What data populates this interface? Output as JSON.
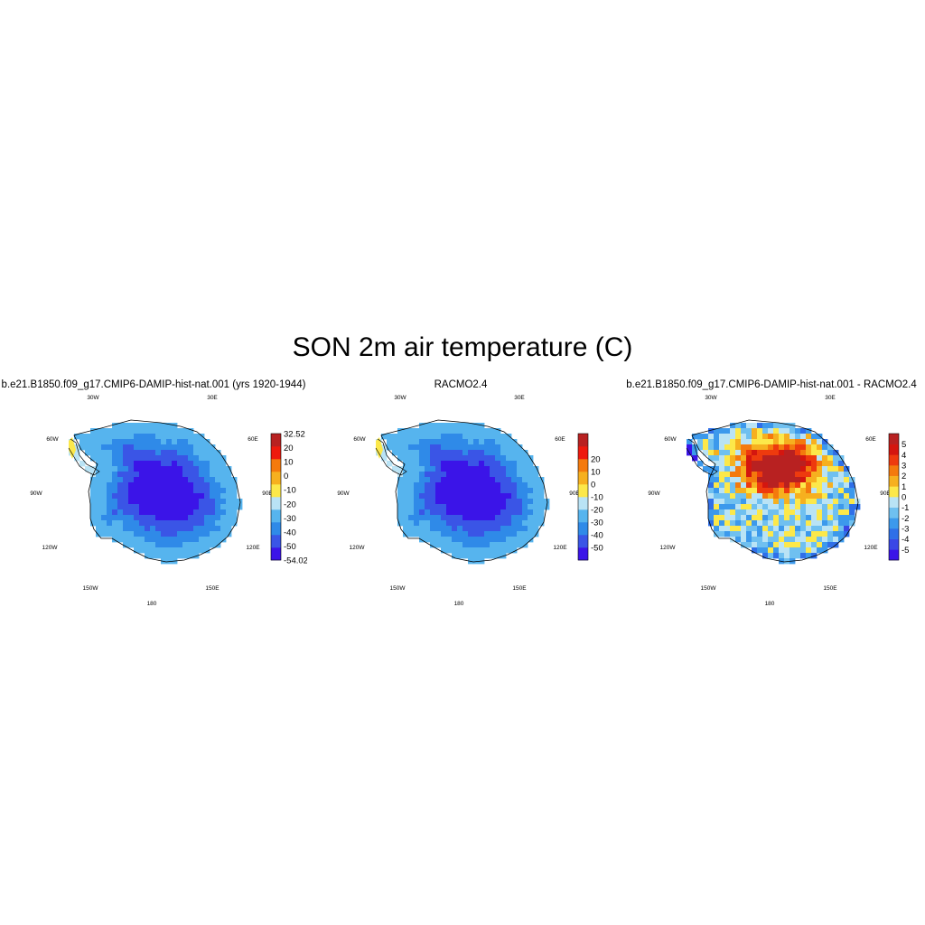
{
  "title": "SON 2m air temperature (C)",
  "lon_labels": [
    "30W",
    "30E",
    "60W",
    "60E",
    "90W",
    "90E",
    "120W",
    "120E",
    "150W",
    "150E",
    "180"
  ],
  "panels": [
    {
      "id": "model",
      "title": "b.e21.B1850.f09_g17.CMIP6-DAMIP-hist-nat.001 (yrs 1920-1944)",
      "colorbar": {
        "colors": [
          "#3b14e8",
          "#3a55e6",
          "#2f8ae8",
          "#56b4ee",
          "#b9e3f5",
          "#fce84a",
          "#f6b01f",
          "#f47a0d",
          "#ee1a0e",
          "#b82121"
        ],
        "labels": [
          "-54.02",
          "-50",
          "-40",
          "-30",
          "-20",
          "-10",
          "0",
          "10",
          "20",
          "32.52"
        ]
      },
      "field": "model"
    },
    {
      "id": "racmo",
      "title": "RACMO2.4",
      "colorbar": {
        "colors": [
          "#3b14e8",
          "#3a55e6",
          "#2f8ae8",
          "#56b4ee",
          "#b9e3f5",
          "#fce84a",
          "#f6b01f",
          "#f47a0d",
          "#ee1a0e",
          "#b82121"
        ],
        "labels": [
          "-50",
          "-40",
          "-30",
          "-20",
          "-10",
          "0",
          "10",
          "20"
        ]
      },
      "field": "racmo"
    },
    {
      "id": "difference",
      "title": "b.e21.B1850.f09_g17.CMIP6-DAMIP-hist-nat.001 - RACMO2.4",
      "colorbar": {
        "colors": [
          "#3b14e8",
          "#3a47e6",
          "#2f6fe8",
          "#3c99ec",
          "#6fc0f0",
          "#b9e3f5",
          "#fce84a",
          "#f6b01f",
          "#f47a0d",
          "#ee3a0e",
          "#d4160f",
          "#b82121"
        ],
        "labels": [
          "-5",
          "-4",
          "-3",
          "-2",
          "-1",
          "0",
          "1",
          "2",
          "3",
          "4",
          "5"
        ]
      },
      "field": "difference"
    }
  ]
}
